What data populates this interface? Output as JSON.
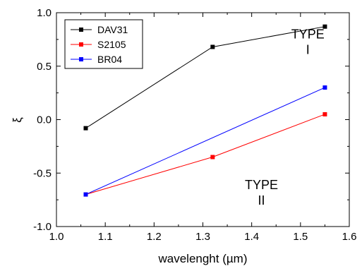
{
  "chart_data": {
    "type": "line",
    "xlabel": "wavelenght (µm)",
    "ylabel": "ξ",
    "xlim": [
      1.0,
      1.6
    ],
    "ylim": [
      -1.0,
      1.0
    ],
    "xticks": [
      "1.0",
      "1.1",
      "1.2",
      "1.3",
      "1.4",
      "1.5",
      "1.6"
    ],
    "yticks": [
      "-1.0",
      "-0.5",
      "0.0",
      "0.5",
      "1.0"
    ],
    "grid": false,
    "legend_position": "top-left",
    "series": [
      {
        "name": "DAV31",
        "color": "#000000",
        "x": [
          1.06,
          1.32,
          1.55
        ],
        "y": [
          -0.08,
          0.68,
          0.87
        ]
      },
      {
        "name": "S2105",
        "color": "#ff0000",
        "x": [
          1.06,
          1.32,
          1.55
        ],
        "y": [
          -0.7,
          -0.35,
          0.05
        ]
      },
      {
        "name": "BR04",
        "color": "#0000ff",
        "x": [
          1.06,
          1.55
        ],
        "y": [
          -0.7,
          0.3
        ]
      }
    ],
    "annotations": [
      {
        "lines": [
          "TYPE",
          "I"
        ],
        "x": 1.515,
        "y": 0.76
      },
      {
        "lines": [
          "TYPE",
          "II"
        ],
        "x": 1.42,
        "y": -0.65
      }
    ]
  }
}
